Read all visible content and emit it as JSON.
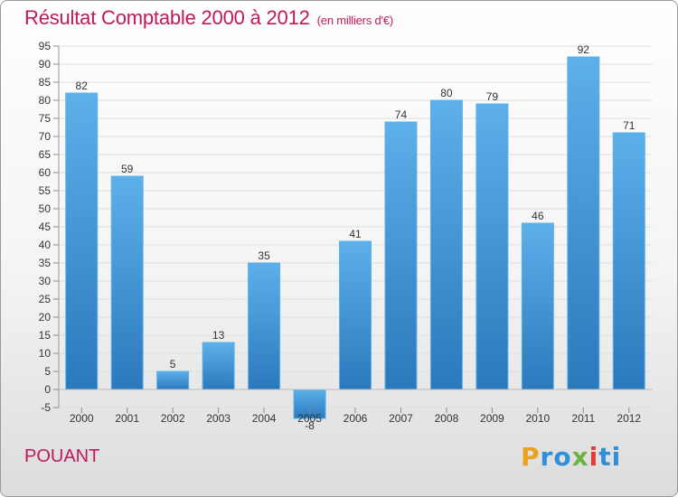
{
  "header": {
    "title": "Résultat Comptable 2000 à 2012",
    "subtitle": "(en milliers d'€)",
    "title_color": "#c2185b"
  },
  "footer": {
    "commune": "POUANT",
    "commune_color": "#c2185b",
    "logo_letters": [
      "P",
      "r",
      "o",
      "x",
      "i",
      "t",
      "i"
    ],
    "logo_colors": [
      "#e8a21c",
      "#2f8fd8",
      "#2f8fd8",
      "#6cb33f",
      "#e53935",
      "#2f8fd8",
      "#2f8fd8"
    ]
  },
  "chart_data": {
    "type": "bar",
    "title": "Résultat Comptable 2000 à 2012",
    "subtitle": "(en milliers d'€)",
    "categories": [
      "2000",
      "2001",
      "2002",
      "2003",
      "2004",
      "2005",
      "2006",
      "2007",
      "2008",
      "2009",
      "2010",
      "2011",
      "2012"
    ],
    "values": [
      82,
      59,
      5,
      13,
      35,
      -8,
      41,
      74,
      80,
      79,
      46,
      92,
      71
    ],
    "value_labels": [
      "82",
      "59",
      "5",
      "13",
      "35",
      "-8",
      "41",
      "74",
      "80",
      "79",
      "46",
      "92",
      "71"
    ],
    "ylim": [
      -5,
      95
    ],
    "yticks": [
      -5,
      0,
      5,
      10,
      15,
      20,
      25,
      30,
      35,
      40,
      45,
      50,
      55,
      60,
      65,
      70,
      75,
      80,
      85,
      90,
      95
    ],
    "grid": true,
    "bar_color": "#3d95d8",
    "bar_color_light": "#5db0ea",
    "bar_color_dark": "#2a79bd",
    "xlabel": "",
    "ylabel": ""
  }
}
